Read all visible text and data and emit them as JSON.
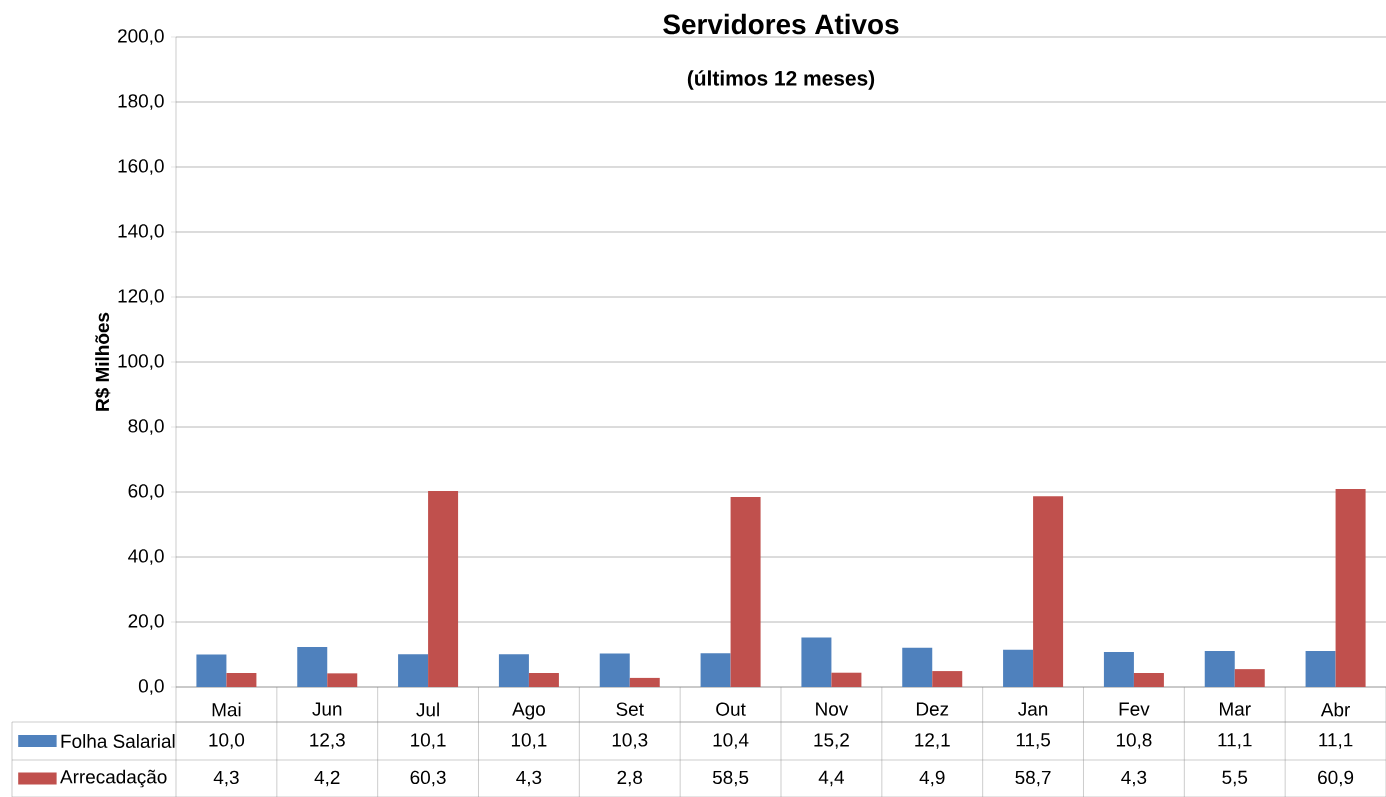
{
  "chart_data": {
    "type": "bar",
    "title": "Servidores Ativos",
    "subtitle": "(últimos 12 meses)",
    "ylabel": "R$ Milhões",
    "categories": [
      "Mai",
      "Jun",
      "Jul",
      "Ago",
      "Set",
      "Out",
      "Nov",
      "Dez",
      "Jan",
      "Fev",
      "Mar",
      "Abr"
    ],
    "series": [
      {
        "name": "Folha Salarial",
        "color": "#4f81bd",
        "values": [
          10.0,
          12.3,
          10.1,
          10.1,
          10.3,
          10.4,
          15.2,
          12.1,
          11.5,
          10.8,
          11.1,
          11.1
        ],
        "value_labels": [
          "10,0",
          "12,3",
          "10,1",
          "10,1",
          "10,3",
          "10,4",
          "15,2",
          "12,1",
          "11,5",
          "10,8",
          "11,1",
          "11,1"
        ]
      },
      {
        "name": "Arrecadação",
        "color": "#c0504d",
        "values": [
          4.3,
          4.2,
          60.3,
          4.3,
          2.8,
          58.5,
          4.4,
          4.9,
          58.7,
          4.3,
          5.5,
          60.9
        ],
        "value_labels": [
          "4,3",
          "4,2",
          "60,3",
          "4,3",
          "2,8",
          "58,5",
          "4,4",
          "4,9",
          "58,7",
          "4,3",
          "5,5",
          "60,9"
        ]
      }
    ],
    "ylim": [
      0,
      200
    ],
    "yticks": [
      {
        "value": 0,
        "label": "0,0"
      },
      {
        "value": 20,
        "label": "20,0"
      },
      {
        "value": 40,
        "label": "40,0"
      },
      {
        "value": 60,
        "label": "60,0"
      },
      {
        "value": 80,
        "label": "80,0"
      },
      {
        "value": 100,
        "label": "100,0"
      },
      {
        "value": 120,
        "label": "120,0"
      },
      {
        "value": 140,
        "label": "140,0"
      },
      {
        "value": 160,
        "label": "160,0"
      },
      {
        "value": 180,
        "label": "180,0"
      },
      {
        "value": 200,
        "label": "200,0"
      }
    ],
    "grid": "y",
    "legend": "bottom"
  }
}
